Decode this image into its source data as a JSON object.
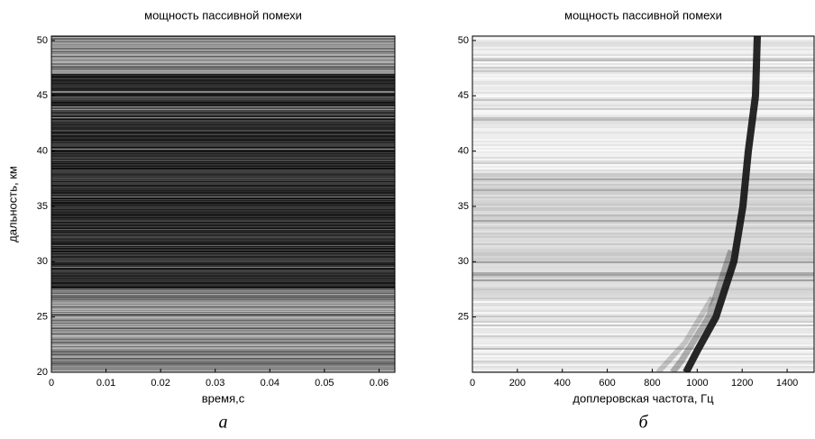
{
  "chart_data": [
    {
      "type": "heatmap",
      "title": "мощность пассивной помехи",
      "xlabel": "время,с",
      "ylabel": "дальность, км",
      "caption": "а",
      "xlim": [
        0,
        0.0629
      ],
      "xticks": [
        0,
        0.01,
        0.02,
        0.03,
        0.04,
        0.05,
        0.06
      ],
      "ylim": [
        20,
        50.4
      ],
      "yticks": [
        20,
        25,
        30,
        35,
        40,
        45,
        50
      ]
    },
    {
      "type": "heatmap",
      "title": "мощность пассивной помехи",
      "xlabel": "доплеровская частота, Гц",
      "caption": "б",
      "xlim": [
        0,
        1520
      ],
      "xticks": [
        0,
        200,
        400,
        600,
        800,
        1000,
        1200,
        1400
      ],
      "ylim": [
        20,
        50.4
      ],
      "yticks": [
        25,
        30,
        35,
        40,
        45,
        50
      ]
    }
  ]
}
